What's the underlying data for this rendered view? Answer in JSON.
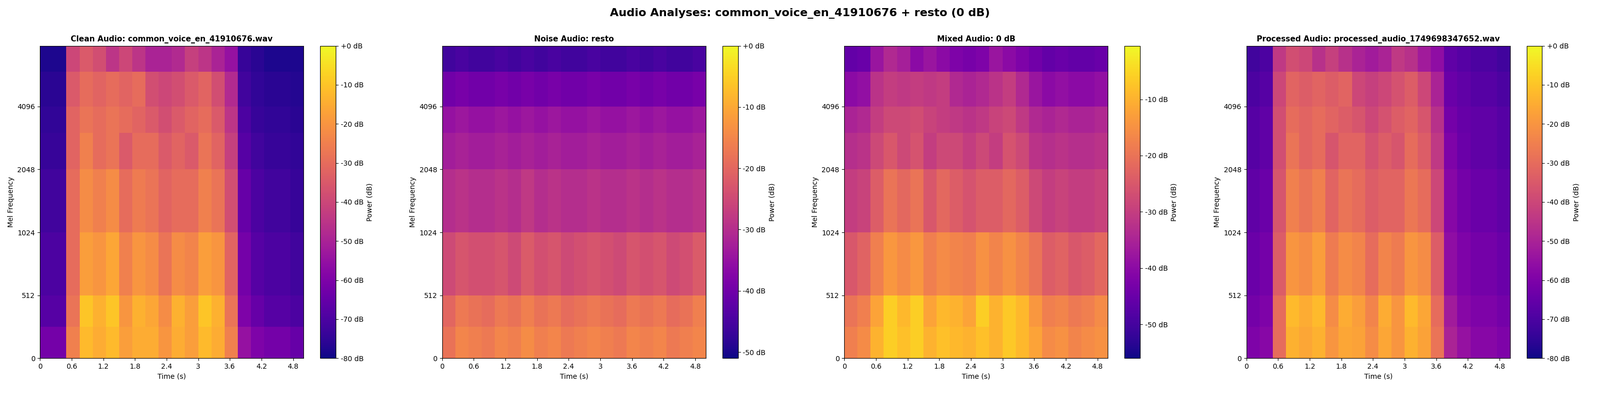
{
  "title": "Audio Analyses: common_voice_en_41910676 + resto (0 dB)",
  "chart_data": [
    {
      "type": "heatmap",
      "title": "Clean Audio: common_voice_en_41910676.wav",
      "x_label": "Time (s)",
      "y_label": "Mel Frequency",
      "log": "y",
      "xlim": [
        0,
        5.0
      ],
      "xticks": [
        0,
        0.6,
        1.2,
        1.8,
        2.4,
        3,
        3.6,
        4.2,
        4.8
      ],
      "ylim": [
        0,
        8000
      ],
      "yticks": [
        0,
        512,
        1024,
        2048,
        4096
      ],
      "x_edges": [
        0,
        0.25,
        0.5,
        0.75,
        1.0,
        1.25,
        1.5,
        1.75,
        2.0,
        2.25,
        2.5,
        2.75,
        3.0,
        3.25,
        3.5,
        3.75,
        4.0,
        4.25,
        4.5,
        4.75,
        5.0
      ],
      "y_edges": [
        0,
        256,
        512,
        1024,
        2048,
        3072,
        4096,
        6000,
        8000
      ],
      "cells": [
        [
          -62,
          -62,
          -25,
          -12,
          -15,
          -12,
          -18,
          -15,
          -15,
          -20,
          -15,
          -18,
          -12,
          -15,
          -25,
          -55,
          -60,
          -62,
          -62,
          -65
        ],
        [
          -68,
          -68,
          -28,
          -10,
          -14,
          -10,
          -20,
          -14,
          -16,
          -22,
          -14,
          -18,
          -10,
          -14,
          -28,
          -60,
          -65,
          -68,
          -68,
          -70
        ],
        [
          -70,
          -70,
          -30,
          -18,
          -20,
          -16,
          -25,
          -20,
          -22,
          -28,
          -22,
          -24,
          -18,
          -20,
          -32,
          -62,
          -68,
          -70,
          -70,
          -72
        ],
        [
          -72,
          -72,
          -30,
          -22,
          -25,
          -22,
          -30,
          -26,
          -28,
          -32,
          -30,
          -30,
          -25,
          -28,
          -38,
          -65,
          -70,
          -72,
          -72,
          -74
        ],
        [
          -74,
          -74,
          -32,
          -25,
          -30,
          -28,
          -35,
          -30,
          -30,
          -35,
          -32,
          -35,
          -28,
          -32,
          -42,
          -68,
          -72,
          -74,
          -74,
          -75
        ],
        [
          -75,
          -75,
          -32,
          -28,
          -30,
          -28,
          -30,
          -32,
          -35,
          -38,
          -35,
          -32,
          -30,
          -35,
          -45,
          -70,
          -74,
          -75,
          -75,
          -76
        ],
        [
          -76,
          -76,
          -35,
          -30,
          -32,
          -30,
          -32,
          -30,
          -38,
          -40,
          -38,
          -35,
          -32,
          -38,
          -48,
          -72,
          -75,
          -76,
          -76,
          -77
        ],
        [
          -78,
          -78,
          -40,
          -35,
          -38,
          -45,
          -40,
          -45,
          -50,
          -50,
          -48,
          -42,
          -45,
          -50,
          -55,
          -74,
          -76,
          -78,
          -78,
          -78
        ]
      ],
      "colorbar": {
        "label": "Power (dB)",
        "range": [
          -80,
          0
        ],
        "ticks": [
          {
            "value": 0,
            "label": "+0 dB"
          },
          {
            "value": -10,
            "label": "-10 dB"
          },
          {
            "value": -20,
            "label": "-20 dB"
          },
          {
            "value": -30,
            "label": "-30 dB"
          },
          {
            "value": -40,
            "label": "-40 dB"
          },
          {
            "value": -50,
            "label": "-50 dB"
          },
          {
            "value": -60,
            "label": "-60 dB"
          },
          {
            "value": -70,
            "label": "-70 dB"
          },
          {
            "value": -80,
            "label": "-80 dB"
          }
        ]
      }
    },
    {
      "type": "heatmap",
      "title": "Noise Audio: resto",
      "x_label": "Time (s)",
      "y_label": "Mel Frequency",
      "log": "y",
      "xlim": [
        0,
        5.0
      ],
      "xticks": [
        0,
        0.6,
        1.2,
        1.8,
        2.4,
        3,
        3.6,
        4.2,
        4.8
      ],
      "ylim": [
        0,
        8000
      ],
      "yticks": [
        0,
        512,
        1024,
        2048,
        4096
      ],
      "x_edges": [
        0,
        0.25,
        0.5,
        0.75,
        1.0,
        1.25,
        1.5,
        1.75,
        2.0,
        2.25,
        2.5,
        2.75,
        3.0,
        3.25,
        3.5,
        3.75,
        4.0,
        4.25,
        4.5,
        4.75,
        5.0
      ],
      "y_edges": [
        0,
        256,
        512,
        1024,
        2048,
        3072,
        4096,
        6000,
        8000
      ],
      "cells": [
        [
          -18,
          -15,
          -16,
          -17,
          -15,
          -16,
          -14,
          -16,
          -15,
          -17,
          -16,
          -15,
          -16,
          -17,
          -15,
          -16,
          -15,
          -17,
          -16,
          -15
        ],
        [
          -20,
          -17,
          -18,
          -19,
          -17,
          -18,
          -16,
          -18,
          -17,
          -19,
          -18,
          -17,
          -18,
          -19,
          -17,
          -18,
          -17,
          -19,
          -18,
          -16
        ],
        [
          -25,
          -23,
          -24,
          -24,
          -23,
          -25,
          -22,
          -24,
          -23,
          -25,
          -24,
          -23,
          -24,
          -25,
          -23,
          -24,
          -23,
          -25,
          -24,
          -22
        ],
        [
          -30,
          -29,
          -30,
          -30,
          -29,
          -30,
          -28,
          -30,
          -29,
          -30,
          -30,
          -29,
          -30,
          -30,
          -29,
          -30,
          -29,
          -30,
          -30,
          -29
        ],
        [
          -33,
          -32,
          -33,
          -33,
          -32,
          -33,
          -32,
          -33,
          -32,
          -33,
          -33,
          -32,
          -33,
          -33,
          -32,
          -33,
          -32,
          -33,
          -33,
          -32
        ],
        [
          -35,
          -34,
          -35,
          -35,
          -34,
          -35,
          -34,
          -35,
          -34,
          -35,
          -35,
          -34,
          -35,
          -35,
          -34,
          -35,
          -34,
          -35,
          -35,
          -34
        ],
        [
          -40,
          -39,
          -40,
          -40,
          -39,
          -40,
          -39,
          -40,
          -39,
          -40,
          -40,
          -39,
          -40,
          -40,
          -39,
          -40,
          -39,
          -40,
          -40,
          -39
        ],
        [
          -46,
          -45,
          -46,
          -46,
          -45,
          -46,
          -45,
          -46,
          -45,
          -46,
          -46,
          -45,
          -46,
          -46,
          -45,
          -46,
          -45,
          -46,
          -46,
          -45
        ]
      ],
      "colorbar": {
        "label": "Power (dB)",
        "range": [
          -51,
          0
        ],
        "ticks": [
          {
            "value": 0,
            "label": "+0 dB"
          },
          {
            "value": -10,
            "label": "-10 dB"
          },
          {
            "value": -20,
            "label": "-20 dB"
          },
          {
            "value": -30,
            "label": "-30 dB"
          },
          {
            "value": -40,
            "label": "-40 dB"
          },
          {
            "value": -50,
            "label": "-50 dB"
          }
        ]
      }
    },
    {
      "type": "heatmap",
      "title": "Mixed Audio: 0 dB",
      "x_label": "Time (s)",
      "y_label": "Mel Frequency",
      "log": "y",
      "xlim": [
        0,
        5.0
      ],
      "xticks": [
        0,
        0.6,
        1.2,
        1.8,
        2.4,
        3,
        3.6,
        4.2,
        4.8
      ],
      "ylim": [
        0,
        8000
      ],
      "yticks": [
        0,
        512,
        1024,
        2048,
        4096
      ],
      "x_edges": [
        0,
        0.25,
        0.5,
        0.75,
        1.0,
        1.25,
        1.5,
        1.75,
        2.0,
        2.25,
        2.5,
        2.75,
        3.0,
        3.25,
        3.5,
        3.75,
        4.0,
        4.25,
        4.5,
        4.75,
        5.0
      ],
      "y_edges": [
        0,
        256,
        512,
        1024,
        2048,
        3072,
        4096,
        6000,
        8000
      ],
      "cells": [
        [
          -18,
          -16,
          -10,
          -6,
          -8,
          -6,
          -10,
          -8,
          -9,
          -10,
          -8,
          -10,
          -7,
          -9,
          -12,
          -16,
          -15,
          -17,
          -16,
          -15
        ],
        [
          -20,
          -18,
          -12,
          -6,
          -9,
          -6,
          -12,
          -9,
          -10,
          -12,
          -6,
          -10,
          -7,
          -9,
          -14,
          -18,
          -17,
          -19,
          -18,
          -16
        ],
        [
          -25,
          -23,
          -18,
          -14,
          -16,
          -14,
          -18,
          -16,
          -17,
          -18,
          -15,
          -17,
          -15,
          -17,
          -20,
          -24,
          -23,
          -25,
          -24,
          -22
        ],
        [
          -30,
          -29,
          -24,
          -20,
          -22,
          -20,
          -25,
          -22,
          -24,
          -26,
          -24,
          -24,
          -22,
          -24,
          -28,
          -30,
          -29,
          -30,
          -30,
          -29
        ],
        [
          -33,
          -32,
          -28,
          -25,
          -28,
          -26,
          -30,
          -28,
          -28,
          -30,
          -28,
          -30,
          -26,
          -28,
          -32,
          -33,
          -32,
          -33,
          -33,
          -32
        ],
        [
          -35,
          -34,
          -30,
          -28,
          -28,
          -27,
          -29,
          -30,
          -31,
          -32,
          -31,
          -29,
          -28,
          -31,
          -34,
          -35,
          -34,
          -35,
          -35,
          -34
        ],
        [
          -40,
          -39,
          -32,
          -30,
          -31,
          -30,
          -31,
          -30,
          -34,
          -35,
          -34,
          -32,
          -30,
          -34,
          -38,
          -40,
          -39,
          -40,
          -40,
          -39
        ],
        [
          -46,
          -45,
          -38,
          -34,
          -36,
          -40,
          -38,
          -40,
          -42,
          -43,
          -42,
          -38,
          -40,
          -42,
          -44,
          -46,
          -45,
          -46,
          -46,
          -45
        ]
      ],
      "colorbar": {
        "label": "Power (dB)",
        "range": [
          -56,
          -0.5
        ],
        "ticks": [
          {
            "value": -10,
            "label": "-10 dB"
          },
          {
            "value": -20,
            "label": "-20 dB"
          },
          {
            "value": -30,
            "label": "-30 dB"
          },
          {
            "value": -40,
            "label": "-40 dB"
          },
          {
            "value": -50,
            "label": "-50 dB"
          }
        ]
      }
    },
    {
      "type": "heatmap",
      "title": "Processed Audio: processed_audio_1749698347652.wav",
      "x_label": "Time (s)",
      "y_label": "Mel Frequency",
      "log": "y",
      "xlim": [
        0,
        5.0
      ],
      "xticks": [
        0,
        0.6,
        1.2,
        1.8,
        2.4,
        3,
        3.6,
        4.2,
        4.8
      ],
      "ylim": [
        0,
        8000
      ],
      "yticks": [
        0,
        512,
        1024,
        2048,
        4096
      ],
      "x_edges": [
        0,
        0.25,
        0.5,
        0.75,
        1.0,
        1.25,
        1.5,
        1.75,
        2.0,
        2.25,
        2.5,
        2.75,
        3.0,
        3.25,
        3.5,
        3.75,
        4.0,
        4.25,
        4.5,
        4.75,
        5.0
      ],
      "y_edges": [
        0,
        256,
        512,
        1024,
        2048,
        3072,
        4096,
        6000,
        8000
      ],
      "cells": [
        [
          -60,
          -58,
          -30,
          -14,
          -16,
          -14,
          -20,
          -16,
          -17,
          -22,
          -16,
          -20,
          -14,
          -17,
          -28,
          -50,
          -55,
          -58,
          -58,
          -60
        ],
        [
          -62,
          -60,
          -30,
          -12,
          -15,
          -12,
          -22,
          -15,
          -18,
          -24,
          -15,
          -20,
          -12,
          -16,
          -30,
          -52,
          -58,
          -60,
          -60,
          -62
        ],
        [
          -64,
          -62,
          -34,
          -20,
          -22,
          -18,
          -26,
          -22,
          -24,
          -30,
          -24,
          -26,
          -20,
          -22,
          -34,
          -56,
          -60,
          -62,
          -62,
          -64
        ],
        [
          -66,
          -64,
          -36,
          -25,
          -28,
          -25,
          -32,
          -28,
          -30,
          -34,
          -32,
          -32,
          -27,
          -30,
          -40,
          -58,
          -62,
          -64,
          -64,
          -66
        ],
        [
          -68,
          -66,
          -38,
          -28,
          -32,
          -30,
          -36,
          -32,
          -32,
          -37,
          -34,
          -36,
          -30,
          -34,
          -44,
          -60,
          -64,
          -66,
          -66,
          -68
        ],
        [
          -68,
          -66,
          -38,
          -30,
          -32,
          -30,
          -32,
          -34,
          -36,
          -40,
          -37,
          -34,
          -32,
          -36,
          -46,
          -62,
          -65,
          -66,
          -66,
          -68
        ],
        [
          -70,
          -68,
          -40,
          -32,
          -34,
          -32,
          -34,
          -32,
          -40,
          -42,
          -40,
          -37,
          -34,
          -40,
          -50,
          -64,
          -66,
          -68,
          -68,
          -70
        ],
        [
          -72,
          -70,
          -44,
          -38,
          -40,
          -46,
          -42,
          -46,
          -50,
          -52,
          -50,
          -44,
          -46,
          -52,
          -56,
          -66,
          -68,
          -70,
          -70,
          -72
        ]
      ],
      "colorbar": {
        "label": "Power (dB)",
        "range": [
          -80,
          0
        ],
        "ticks": [
          {
            "value": 0,
            "label": "+0 dB"
          },
          {
            "value": -10,
            "label": "-10 dB"
          },
          {
            "value": -20,
            "label": "-20 dB"
          },
          {
            "value": -30,
            "label": "-30 dB"
          },
          {
            "value": -40,
            "label": "-40 dB"
          },
          {
            "value": -50,
            "label": "-50 dB"
          },
          {
            "value": -60,
            "label": "-60 dB"
          },
          {
            "value": -70,
            "label": "-70 dB"
          },
          {
            "value": -80,
            "label": "-80 dB"
          }
        ]
      }
    }
  ]
}
